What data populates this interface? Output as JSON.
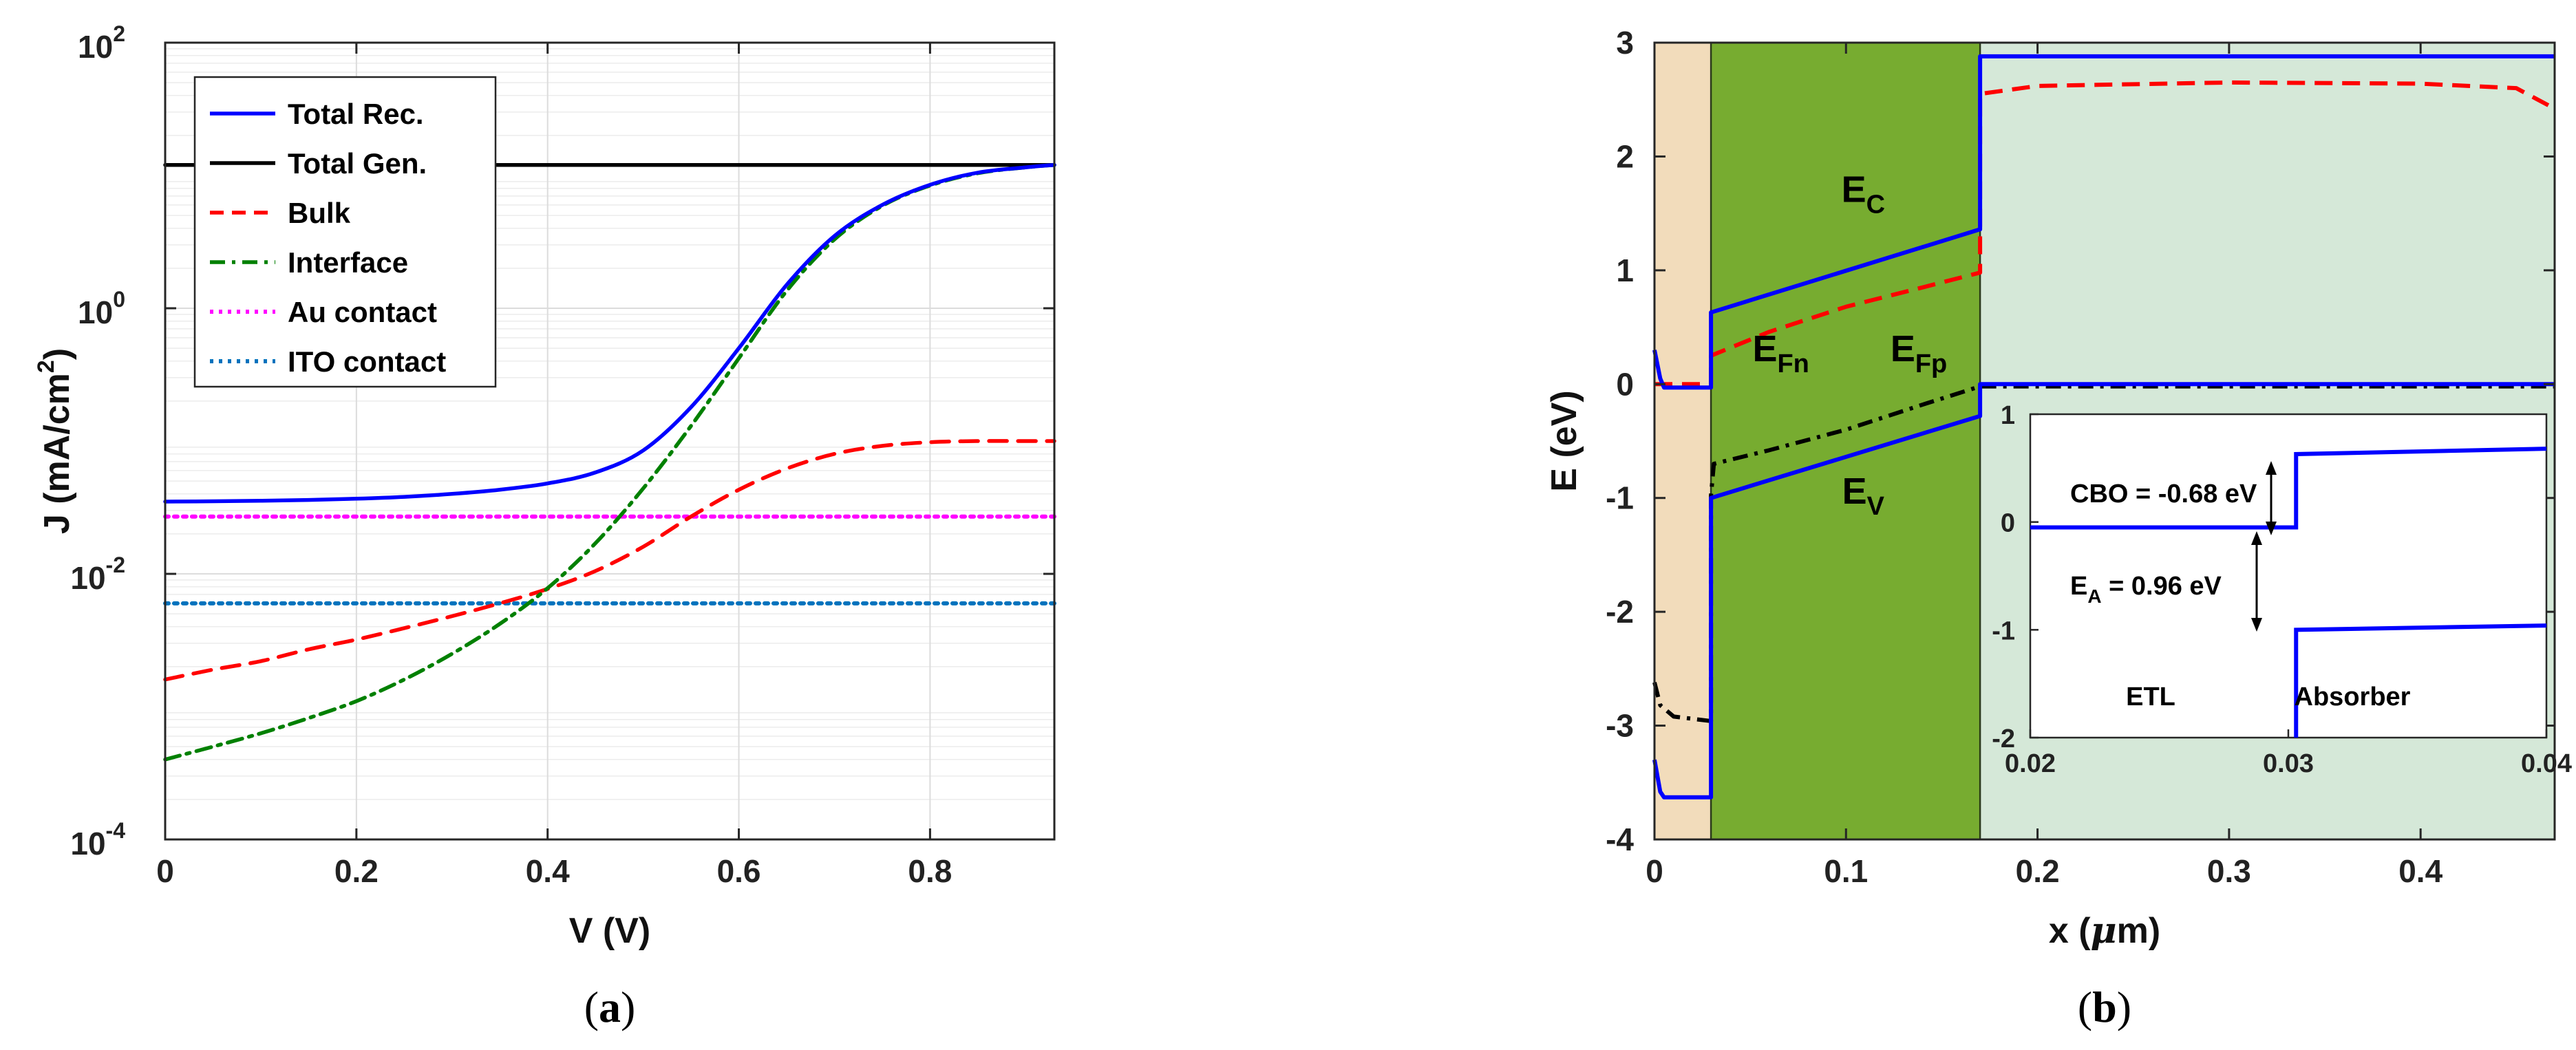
{
  "chart_data": [
    {
      "type": "line",
      "panel": "a",
      "xlabel": "V (V)",
      "ylabel_parts": {
        "main": "J (mA/cm",
        "sup": "2",
        "end": ")"
      },
      "xlim": [
        0,
        0.93
      ],
      "ylim_log10": [
        -4,
        2
      ],
      "yscale": "log",
      "x_ticks": [
        "0",
        "0.2",
        "0.4",
        "0.6",
        "0.8"
      ],
      "x_tick_values": [
        0,
        0.2,
        0.4,
        0.6,
        0.8
      ],
      "y_ticks": [
        {
          "base": "10",
          "exp": "-4",
          "value_log10": -4
        },
        {
          "base": "10",
          "exp": "-2",
          "value_log10": -2
        },
        {
          "base": "10",
          "exp": "0",
          "value_log10": 0
        },
        {
          "base": "10",
          "exp": "2",
          "value_log10": 2
        }
      ],
      "grid": true,
      "legend_position": "top-left",
      "x": [
        0,
        0.05,
        0.1,
        0.15,
        0.2,
        0.25,
        0.3,
        0.35,
        0.4,
        0.45,
        0.5,
        0.55,
        0.6,
        0.65,
        0.7,
        0.75,
        0.8,
        0.85,
        0.9,
        0.93
      ],
      "series": [
        {
          "name": "Total Rec.",
          "color": "#0000ff",
          "dash": "solid",
          "y": [
            0.035,
            0.0352,
            0.0355,
            0.036,
            0.0368,
            0.038,
            0.04,
            0.043,
            0.048,
            0.058,
            0.085,
            0.18,
            0.5,
            1.5,
            3.5,
            6.0,
            8.5,
            10.5,
            11.5,
            12.0
          ]
        },
        {
          "name": "Total Gen.",
          "color": "#000000",
          "dash": "solid",
          "y": [
            12.0,
            12.0,
            12.0,
            12.0,
            12.0,
            12.0,
            12.0,
            12.0,
            12.0,
            12.0,
            12.0,
            12.0,
            12.0,
            12.0,
            12.0,
            12.0,
            12.0,
            12.0,
            12.0,
            12.0
          ]
        },
        {
          "name": "Bulk",
          "color": "#ff0000",
          "dash": "dashed",
          "y": [
            0.0016,
            0.0019,
            0.0022,
            0.0027,
            0.0032,
            0.0039,
            0.0048,
            0.006,
            0.0077,
            0.0105,
            0.016,
            0.027,
            0.043,
            0.062,
            0.08,
            0.092,
            0.098,
            0.1,
            0.1,
            0.1
          ]
        },
        {
          "name": "Interface",
          "color": "#008000",
          "dash": "dashdot",
          "y": [
            0.0004,
            0.0005,
            0.00063,
            0.00082,
            0.0011,
            0.0016,
            0.0025,
            0.0042,
            0.0078,
            0.017,
            0.044,
            0.13,
            0.42,
            1.35,
            3.3,
            5.9,
            8.4,
            10.4,
            11.5,
            12.0
          ]
        },
        {
          "name": "Au contact",
          "color": "#ff00ff",
          "dash": "dotted",
          "y": [
            0.027,
            0.027,
            0.027,
            0.027,
            0.027,
            0.027,
            0.027,
            0.027,
            0.027,
            0.027,
            0.027,
            0.027,
            0.027,
            0.027,
            0.027,
            0.027,
            0.027,
            0.027,
            0.027,
            0.027
          ]
        },
        {
          "name": "ITO contact",
          "color": "#0072bd",
          "dash": "dotted",
          "y": [
            0.006,
            0.006,
            0.006,
            0.006,
            0.006,
            0.006,
            0.006,
            0.006,
            0.006,
            0.006,
            0.006,
            0.006,
            0.006,
            0.006,
            0.006,
            0.006,
            0.006,
            0.006,
            0.006,
            0.006
          ]
        }
      ]
    },
    {
      "type": "line",
      "panel": "b",
      "xlabel_parts": {
        "main": "x (",
        "mu": "μ",
        "end": "m)"
      },
      "ylabel": "E (eV)",
      "xlim": [
        0,
        0.47
      ],
      "ylim": [
        -4,
        3
      ],
      "x_ticks": [
        "0",
        "0.1",
        "0.2",
        "0.3",
        "0.4"
      ],
      "x_tick_values": [
        0,
        0.1,
        0.2,
        0.3,
        0.4
      ],
      "y_ticks": [
        "-4",
        "-3",
        "-2",
        "-1",
        "0",
        "1",
        "2",
        "3"
      ],
      "y_tick_values": [
        -4,
        -3,
        -2,
        -1,
        0,
        1,
        2,
        3
      ],
      "regions": [
        {
          "x0": 0,
          "x1": 0.0295,
          "color": "#f2dcbb"
        },
        {
          "x0": 0.0295,
          "x1": 0.17,
          "color": "#77ac30"
        },
        {
          "x0": 0.17,
          "x1": 0.47,
          "color": "#d5e8d8"
        }
      ],
      "series": [
        {
          "name": "EC",
          "color": "#0000ff",
          "dash": "solid",
          "points": [
            [
              0,
              0.3
            ],
            [
              0.003,
              0.05
            ],
            [
              0.005,
              -0.03
            ],
            [
              0.0295,
              -0.03
            ],
            [
              0.0295,
              0.63
            ],
            [
              0.17,
              1.36
            ],
            [
              0.17,
              2.88
            ],
            [
              0.47,
              2.88
            ]
          ]
        },
        {
          "name": "EV",
          "color": "#0000ff",
          "dash": "solid",
          "points": [
            [
              0,
              -3.3
            ],
            [
              0.003,
              -3.58
            ],
            [
              0.005,
              -3.63
            ],
            [
              0.0295,
              -3.63
            ],
            [
              0.0295,
              -1.0
            ],
            [
              0.17,
              -0.28
            ],
            [
              0.17,
              0.0
            ],
            [
              0.47,
              0.0
            ]
          ]
        },
        {
          "name": "EFn",
          "color": "#ff0000",
          "dash": "dashed",
          "points": [
            [
              0,
              0.0
            ],
            [
              0.0295,
              0.0
            ],
            [
              0.0295,
              0.25
            ],
            [
              0.06,
              0.46
            ],
            [
              0.1,
              0.68
            ],
            [
              0.14,
              0.85
            ],
            [
              0.17,
              0.98
            ],
            [
              0.17,
              2.55
            ],
            [
              0.2,
              2.62
            ],
            [
              0.3,
              2.65
            ],
            [
              0.4,
              2.64
            ],
            [
              0.45,
              2.6
            ],
            [
              0.47,
              2.42
            ]
          ]
        },
        {
          "name": "EFp",
          "color": "#000000",
          "dash": "dashdot",
          "points": [
            [
              0,
              -2.62
            ],
            [
              0.003,
              -2.82
            ],
            [
              0.01,
              -2.92
            ],
            [
              0.0295,
              -2.96
            ],
            [
              0.0295,
              -0.98
            ],
            [
              0.031,
              -0.7
            ],
            [
              0.06,
              -0.58
            ],
            [
              0.1,
              -0.4
            ],
            [
              0.14,
              -0.18
            ],
            [
              0.17,
              -0.02
            ],
            [
              0.47,
              -0.02
            ]
          ]
        }
      ],
      "annotations": [
        {
          "main": "E",
          "sub": "C",
          "x": 0.109,
          "y": 1.6
        },
        {
          "main": "E",
          "sub": "Fn",
          "x": 0.066,
          "y": 0.2
        },
        {
          "main": "E",
          "sub": "Fp",
          "x": 0.138,
          "y": 0.2
        },
        {
          "main": "E",
          "sub": "V",
          "x": 0.109,
          "y": -1.05
        }
      ],
      "inset": {
        "xlim": [
          0.02,
          0.04
        ],
        "ylim": [
          -2,
          1
        ],
        "x_ticks": [
          "0.02",
          "0.03",
          "0.04"
        ],
        "x_tick_values": [
          0.02,
          0.03,
          0.04
        ],
        "y_ticks": [
          "-2",
          "-1",
          "0",
          "1"
        ],
        "y_tick_values": [
          -2,
          -1,
          0,
          1
        ],
        "series": [
          {
            "name": "EC",
            "color": "#0000ff",
            "points": [
              [
                0.02,
                -0.05
              ],
              [
                0.0303,
                -0.05
              ],
              [
                0.0303,
                0.63
              ],
              [
                0.04,
                0.68
              ]
            ]
          },
          {
            "name": "EV",
            "color": "#0000ff",
            "points": [
              [
                0.0303,
                -2.0
              ],
              [
                0.0303,
                -1.0
              ],
              [
                0.04,
                -0.96
              ]
            ]
          }
        ],
        "cbo_label": "CBO = -0.68 eV",
        "ea_label_parts": {
          "main": "E",
          "sub": "A",
          "end": " = 0.96 eV"
        },
        "region_labels": [
          "ETL",
          "Absorber"
        ]
      }
    }
  ],
  "captions": [
    {
      "open": "(",
      "letter": "a",
      "close": ")"
    },
    {
      "open": "(",
      "letter": "b",
      "close": ")"
    }
  ]
}
